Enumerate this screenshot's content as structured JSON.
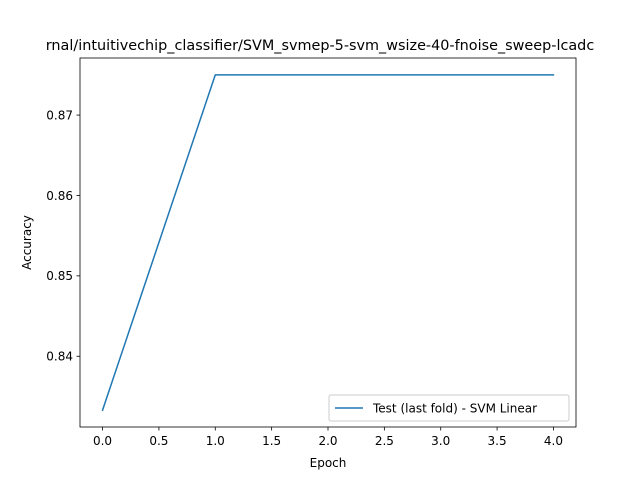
{
  "chart_data": {
    "type": "line",
    "title": "rnal/intuitivechip_classifier/SVM_svmep-5-svm_wsize-40-fnoise_sweep-lcadc",
    "xlabel": "Epoch",
    "ylabel": "Accuracy",
    "xlim": [
      -0.2,
      4.2
    ],
    "ylim": [
      0.8312,
      0.8771
    ],
    "x_ticks": [
      0.0,
      0.5,
      1.0,
      1.5,
      2.0,
      2.5,
      3.0,
      3.5,
      4.0
    ],
    "x_tick_labels": [
      "0.0",
      "0.5",
      "1.0",
      "1.5",
      "2.0",
      "2.5",
      "3.0",
      "3.5",
      "4.0"
    ],
    "y_ticks": [
      0.84,
      0.85,
      0.86,
      0.87
    ],
    "y_tick_labels": [
      "0.84",
      "0.85",
      "0.86",
      "0.87"
    ],
    "grid": false,
    "legend_position": "lower-right",
    "series": [
      {
        "name": "Test (last fold) - SVM Linear",
        "color": "#1f77b4",
        "x": [
          0,
          1,
          2,
          3,
          4
        ],
        "y": [
          0.8333,
          0.875,
          0.875,
          0.875,
          0.875
        ]
      }
    ]
  }
}
